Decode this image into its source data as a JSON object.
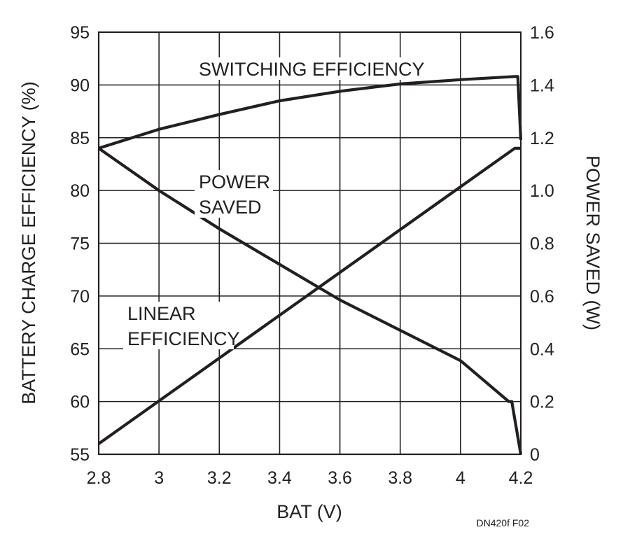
{
  "chart_data": {
    "type": "line",
    "title": "",
    "xlabel": "BAT (V)",
    "ylabel": "BATTERY CHARGE EFFICIENCY (%)",
    "y2label": "POWER SAVED (W)",
    "xlim": [
      2.8,
      4.2
    ],
    "ylim": [
      55,
      95
    ],
    "y2lim": [
      0,
      1.6
    ],
    "x_ticks": [
      "2.8",
      "3",
      "3.2",
      "3.4",
      "3.6",
      "3.8",
      "4",
      "4.2"
    ],
    "y_ticks": [
      "95",
      "90",
      "85",
      "80",
      "75",
      "70",
      "65",
      "60",
      "55"
    ],
    "y2_ticks": [
      "1.6",
      "1.4",
      "1.2",
      "1.0",
      "0.8",
      "0.6",
      "0.4",
      "0.2",
      "0"
    ],
    "grid": true,
    "legend": "none",
    "series": [
      {
        "name": "SWITCHING EFFICIENCY",
        "label_lines": [
          "SWITCHING EFFICIENCY"
        ],
        "axis": "left",
        "x": [
          2.8,
          3.0,
          3.2,
          3.4,
          3.6,
          3.8,
          4.0,
          4.18,
          4.19,
          4.2
        ],
        "y": [
          84.0,
          85.8,
          87.2,
          88.5,
          89.4,
          90.1,
          90.5,
          90.8,
          90.8,
          84.8
        ]
      },
      {
        "name": "LINEAR EFFICIENCY",
        "label_lines": [
          "LINEAR",
          "EFFICIENCY"
        ],
        "axis": "left",
        "x": [
          2.8,
          4.18,
          4.2
        ],
        "y": [
          56.0,
          84.0,
          84.0
        ]
      },
      {
        "name": "POWER SAVED",
        "label_lines": [
          "POWER",
          "SAVED"
        ],
        "axis": "right",
        "x": [
          2.8,
          3.0,
          3.2,
          3.4,
          3.6,
          3.8,
          4.0,
          4.16,
          4.17,
          4.2
        ],
        "y": [
          1.16,
          1.0,
          0.855,
          0.72,
          0.585,
          0.47,
          0.355,
          0.2,
          0.2,
          0.0
        ]
      }
    ],
    "figure_id": "DN420f F02"
  }
}
